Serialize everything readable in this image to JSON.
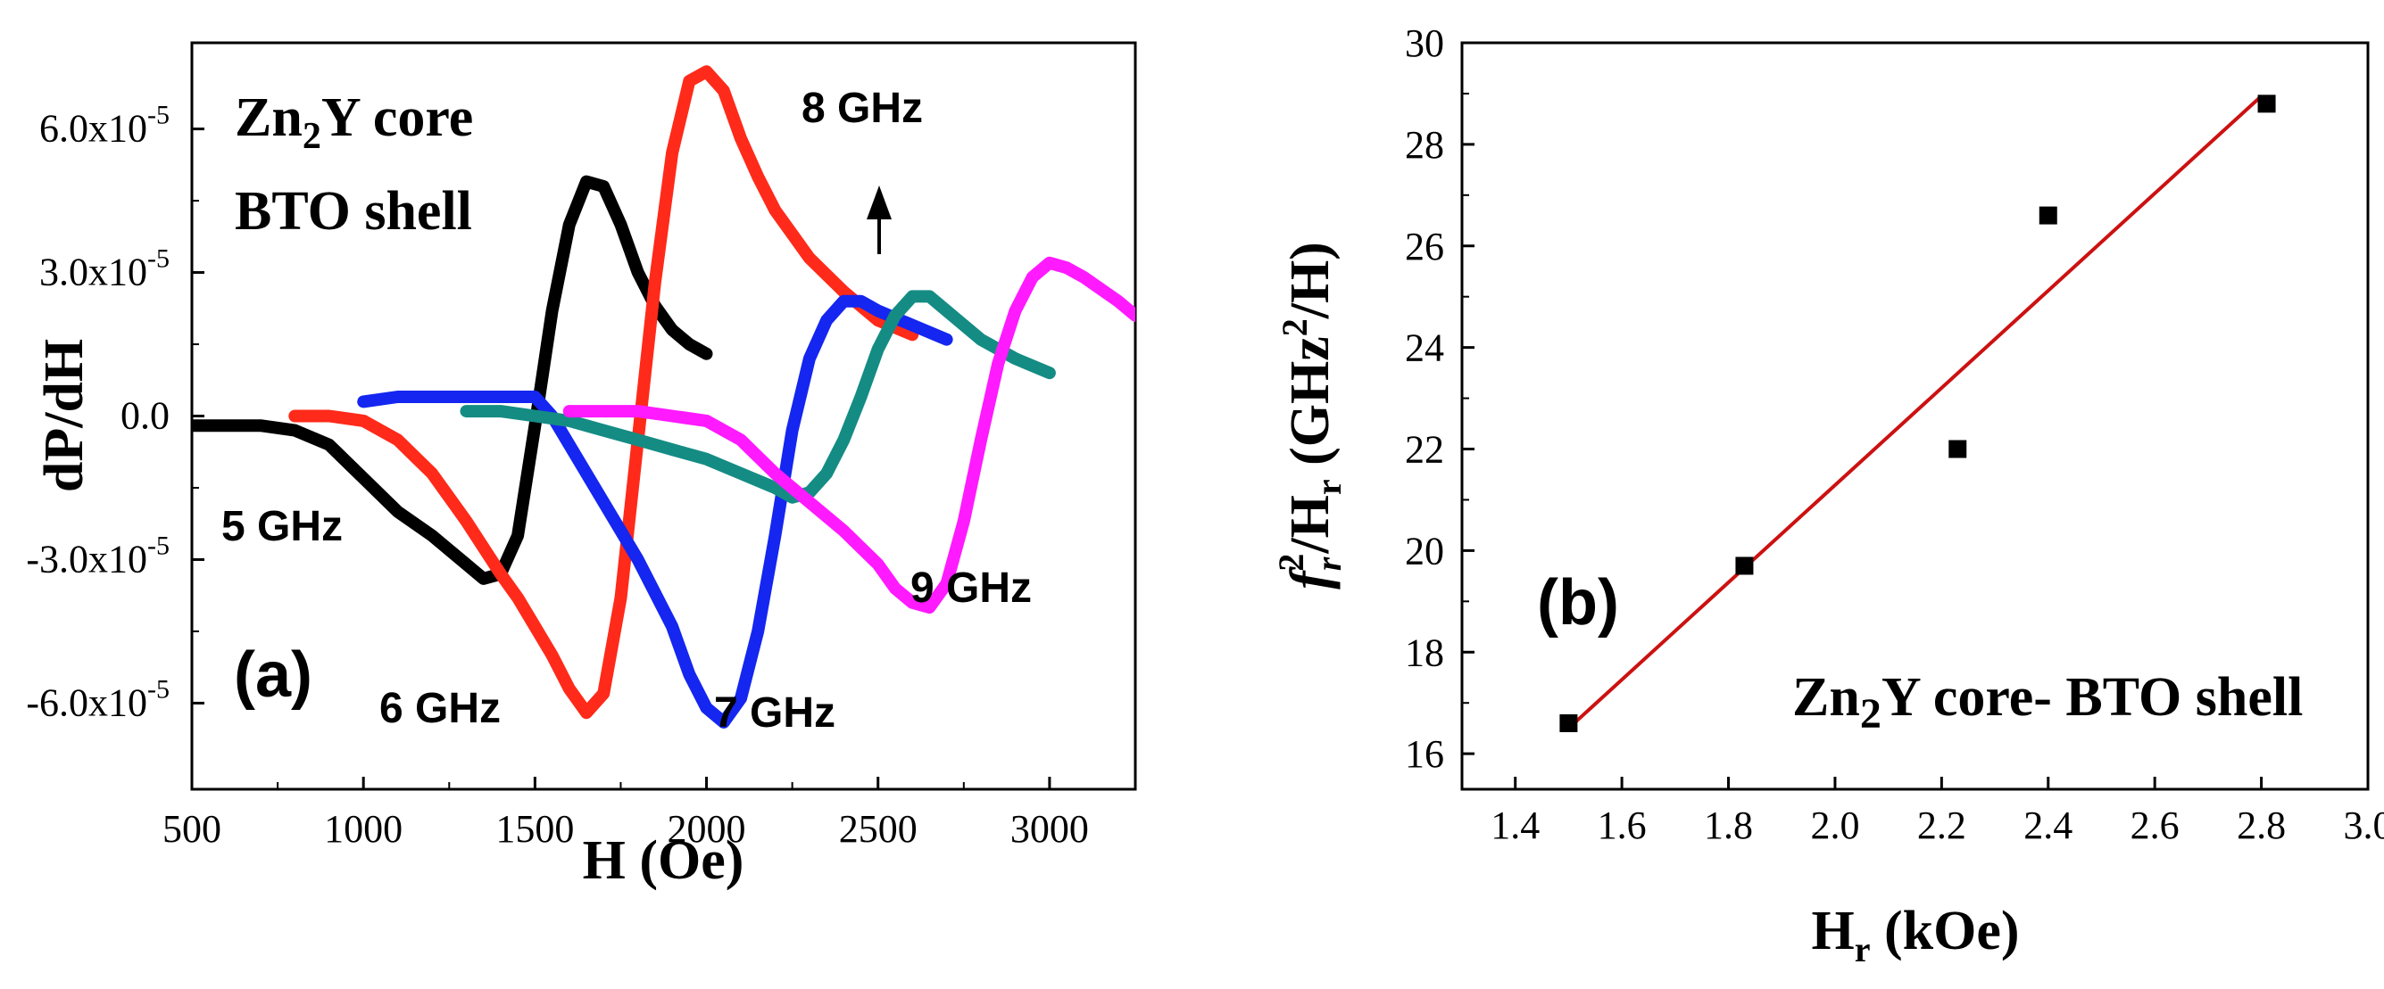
{
  "chart_data": [
    {
      "panel": "(a)",
      "type": "line",
      "title": "",
      "xlabel": "H (Oe)",
      "ylabel": "dP/dH",
      "xlim": [
        500,
        3250
      ],
      "ylim": [
        -7.8e-05,
        7.8e-05
      ],
      "xticks": [
        500,
        1000,
        1500,
        2000,
        2500,
        3000
      ],
      "xtick_labels": [
        "500",
        "1000",
        "1500",
        "2000",
        "2500",
        "3000"
      ],
      "yticks": [
        -6e-05,
        -3e-05,
        0.0,
        3e-05,
        6e-05
      ],
      "ytick_labels": [
        {
          "mant": "-6.0x10",
          "exp": "-5"
        },
        {
          "mant": "-3.0x10",
          "exp": "-5"
        },
        {
          "mant": "0.0",
          "exp": ""
        },
        {
          "mant": "3.0x10",
          "exp": "-5"
        },
        {
          "mant": "6.0x10",
          "exp": "-5"
        }
      ],
      "sample": {
        "line1_main": "Zn",
        "line1_sub": "2",
        "line1_rest": "Y core",
        "line2": "BTO shell"
      },
      "panel_label": "(a)",
      "arrow_label": "8 GHz",
      "series": [
        {
          "name": "5 GHz",
          "color": "#000000",
          "x": [
            500,
            600,
            700,
            800,
            900,
            1000,
            1100,
            1200,
            1300,
            1350,
            1400,
            1450,
            1500,
            1550,
            1600,
            1650,
            1700,
            1750,
            1800,
            1850,
            1900,
            1950,
            2000
          ],
          "y": [
            -2e-06,
            -2e-06,
            -2e-06,
            -3e-06,
            -6e-06,
            -1.3e-05,
            -2e-05,
            -2.5e-05,
            -3.1e-05,
            -3.4e-05,
            -3.3e-05,
            -2.5e-05,
            -2e-06,
            2.2e-05,
            4e-05,
            4.9e-05,
            4.8e-05,
            4e-05,
            3e-05,
            2.3e-05,
            1.8e-05,
            1.5e-05,
            1.3e-05
          ]
        },
        {
          "name": "6 GHz",
          "color": "#ff2a1a",
          "x": [
            800,
            900,
            1000,
            1100,
            1200,
            1300,
            1400,
            1450,
            1500,
            1550,
            1600,
            1650,
            1700,
            1750,
            1800,
            1850,
            1900,
            1950,
            2000,
            2050,
            2100,
            2150,
            2200,
            2300,
            2400,
            2500,
            2600
          ],
          "y": [
            0.0,
            0.0,
            -1e-06,
            -5e-06,
            -1.2e-05,
            -2.2e-05,
            -3.3e-05,
            -3.8e-05,
            -4.4e-05,
            -5e-05,
            -5.7e-05,
            -6.2e-05,
            -5.8e-05,
            -3.8e-05,
            -5e-06,
            2.8e-05,
            5.5e-05,
            7e-05,
            7.2e-05,
            6.8e-05,
            5.8e-05,
            5e-05,
            4.3e-05,
            3.3e-05,
            2.6e-05,
            2e-05,
            1.7e-05
          ]
        },
        {
          "name": "7 GHz",
          "color": "#1426f0",
          "x": [
            1000,
            1100,
            1200,
            1300,
            1400,
            1500,
            1550,
            1600,
            1700,
            1800,
            1900,
            1950,
            2000,
            2050,
            2100,
            2150,
            2200,
            2250,
            2300,
            2350,
            2400,
            2450,
            2500,
            2600,
            2700
          ],
          "y": [
            3e-06,
            4e-06,
            4e-06,
            4e-06,
            4e-06,
            4e-06,
            0.0,
            -6e-06,
            -1.8e-05,
            -3e-05,
            -4.4e-05,
            -5.4e-05,
            -6.1e-05,
            -6.4e-05,
            -5.9e-05,
            -4.5e-05,
            -2.5e-05,
            -3e-06,
            1.2e-05,
            2e-05,
            2.4e-05,
            2.4e-05,
            2.2e-05,
            1.9e-05,
            1.6e-05
          ]
        },
        {
          "name": "8 GHz",
          "color": "#148c84",
          "x": [
            1300,
            1400,
            1500,
            1600,
            1700,
            1800,
            1900,
            2000,
            2100,
            2200,
            2250,
            2300,
            2350,
            2400,
            2450,
            2500,
            2550,
            2600,
            2650,
            2700,
            2800,
            2900,
            3000
          ],
          "y": [
            1e-06,
            1e-06,
            0.0,
            -1e-06,
            -3e-06,
            -5e-06,
            -7e-06,
            -9e-06,
            -1.2e-05,
            -1.5e-05,
            -1.7e-05,
            -1.6e-05,
            -1.2e-05,
            -5e-06,
            4e-06,
            1.4e-05,
            2.1e-05,
            2.5e-05,
            2.5e-05,
            2.2e-05,
            1.6e-05,
            1.2e-05,
            9e-06
          ]
        },
        {
          "name": "9 GHz",
          "color": "#ff1aff",
          "x": [
            1600,
            1700,
            1800,
            1900,
            2000,
            2050,
            2100,
            2200,
            2300,
            2400,
            2500,
            2550,
            2600,
            2650,
            2700,
            2750,
            2800,
            2850,
            2900,
            2950,
            3000,
            3050,
            3100,
            3200,
            3250
          ],
          "y": [
            1e-06,
            1e-06,
            1e-06,
            0.0,
            -1e-06,
            -3e-06,
            -5e-06,
            -1.2e-05,
            -1.8e-05,
            -2.4e-05,
            -3.1e-05,
            -3.6e-05,
            -3.9e-05,
            -4e-05,
            -3.5e-05,
            -2.2e-05,
            -5e-06,
            1.1e-05,
            2.2e-05,
            2.9e-05,
            3.2e-05,
            3.1e-05,
            2.9e-05,
            2.4e-05,
            2.1e-05
          ]
        }
      ]
    },
    {
      "panel": "(b)",
      "type": "scatter",
      "title": "",
      "xlabel_main": "H",
      "xlabel_sub": "r",
      "xlabel_rest": " (kOe)",
      "ylabel_f": "f",
      "ylabel_fsub": "r",
      "ylabel_fsup": "2",
      "ylabel_slash": "/H",
      "ylabel_hsub": "r",
      "ylabel_rest1": " (GHz",
      "ylabel_sup2": "2",
      "ylabel_rest2": "/H)",
      "xlim": [
        1.3,
        3.0
      ],
      "ylim": [
        15.3,
        30
      ],
      "xticks": [
        1.4,
        1.6,
        1.8,
        2.0,
        2.2,
        2.4,
        2.6,
        2.8,
        3.0
      ],
      "xtick_labels": [
        "1.4",
        "1.6",
        "1.8",
        "2.0",
        "2.2",
        "2.4",
        "2.6",
        "2.8",
        "3.0"
      ],
      "yticks": [
        16,
        18,
        20,
        22,
        24,
        26,
        28,
        30
      ],
      "ytick_labels": [
        "16",
        "18",
        "20",
        "22",
        "24",
        "26",
        "28",
        "30"
      ],
      "panel_label": "(b)",
      "sample": {
        "main": "Zn",
        "sub": "2",
        "rest": "Y core- BTO shell"
      },
      "points": {
        "x": [
          1.5,
          1.83,
          2.23,
          2.4,
          2.81
        ],
        "y": [
          16.6,
          19.7,
          22.0,
          26.6,
          28.8
        ]
      },
      "fit_line": {
        "x": [
          1.5,
          2.8
        ],
        "y": [
          16.5,
          28.95
        ],
        "color": "#cc1111"
      }
    }
  ]
}
